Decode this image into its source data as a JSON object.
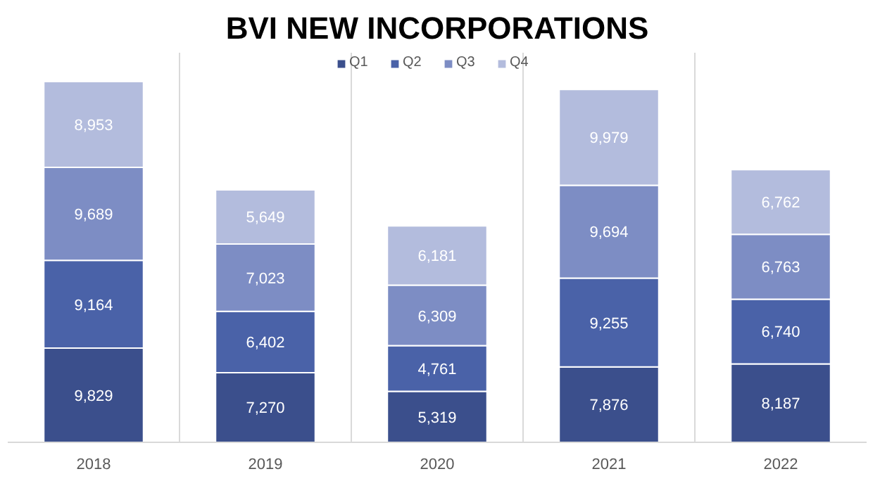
{
  "chart_data": {
    "type": "bar",
    "title": "BVI NEW INCORPORATIONS",
    "stacked": true,
    "legend": "top",
    "grid": "x",
    "categories": [
      "2018",
      "2019",
      "2020",
      "2021",
      "2022"
    ],
    "series": [
      {
        "name": "Q1",
        "color": "#3b4f8c",
        "values": [
          9829,
          7270,
          5319,
          7876,
          8187
        ],
        "value_labels": [
          "9,829",
          "7,270",
          "5,319",
          "7,876",
          "8,187"
        ]
      },
      {
        "name": "Q2",
        "color": "#4a62a8",
        "values": [
          9164,
          6402,
          4761,
          9255,
          6740
        ],
        "value_labels": [
          "9,164",
          "6,402",
          "4,761",
          "9,255",
          "6,740"
        ]
      },
      {
        "name": "Q3",
        "color": "#7d8dc4",
        "values": [
          9689,
          7023,
          6309,
          9694,
          6763
        ],
        "value_labels": [
          "9,689",
          "7,023",
          "6,309",
          "9,694",
          "6,763"
        ]
      },
      {
        "name": "Q4",
        "color": "#b3bcdd",
        "values": [
          8953,
          5649,
          6181,
          9979,
          6762
        ],
        "value_labels": [
          "8,953",
          "5,649",
          "6,181",
          "9,979",
          "6,762"
        ]
      }
    ]
  }
}
